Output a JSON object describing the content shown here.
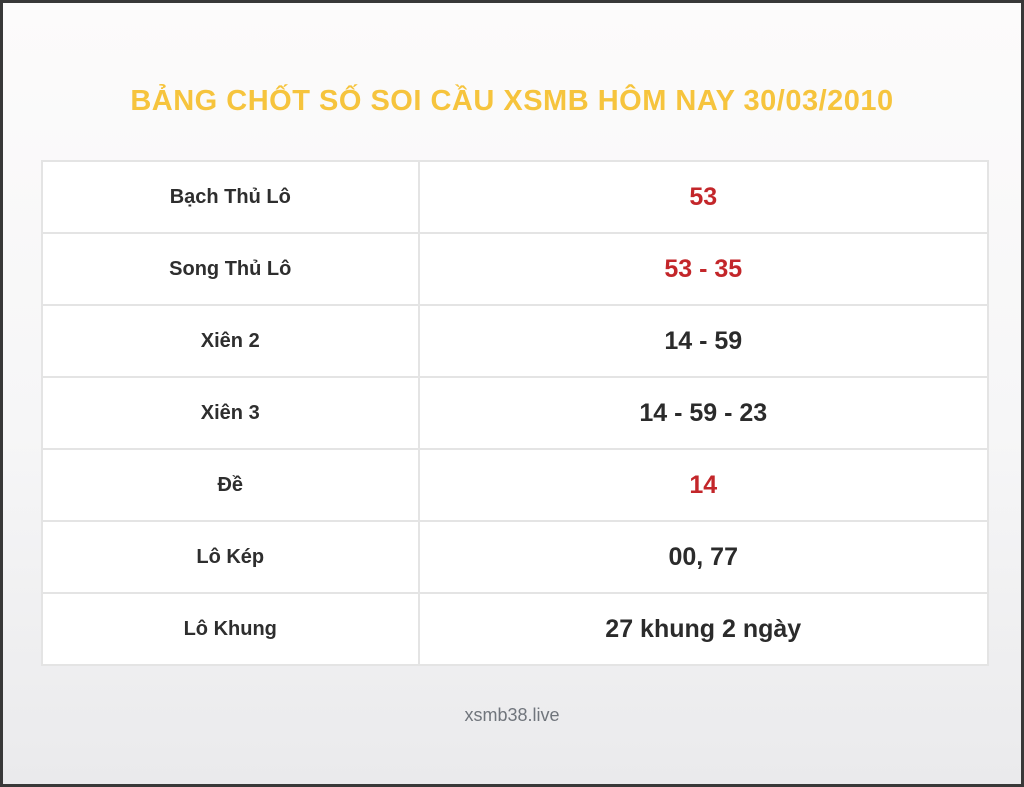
{
  "page": {
    "title": "BẢNG CHỐT SỐ SOI CẦU XSMB HÔM NAY 30/03/2010",
    "footer": "xsmb38.live"
  },
  "colors": {
    "title_yellow": "#f6c43d",
    "highlight_red": "#c3262a",
    "text_dark": "#2e2e2e",
    "table_border": "#e4e4e4",
    "frame_border": "#383838"
  },
  "chart_data": {
    "type": "table",
    "title": "BẢNG CHỐT SỐ SOI CẦU XSMB HÔM NAY 30/03/2010",
    "columns": [
      "label",
      "value"
    ],
    "rows": [
      {
        "label": "Bạch Thủ Lô",
        "value": "53",
        "highlight": true
      },
      {
        "label": "Song Thủ Lô",
        "value": "53 - 35",
        "highlight": true
      },
      {
        "label": "Xiên 2",
        "value": "14 - 59",
        "highlight": false
      },
      {
        "label": "Xiên 3",
        "value": "14 - 59 - 23",
        "highlight": false
      },
      {
        "label": "Đề",
        "value": "14",
        "highlight": true
      },
      {
        "label": "Lô Kép",
        "value": "00, 77",
        "highlight": false
      },
      {
        "label": "Lô Khung",
        "value": "27 khung 2 ngày",
        "highlight": false
      }
    ]
  }
}
